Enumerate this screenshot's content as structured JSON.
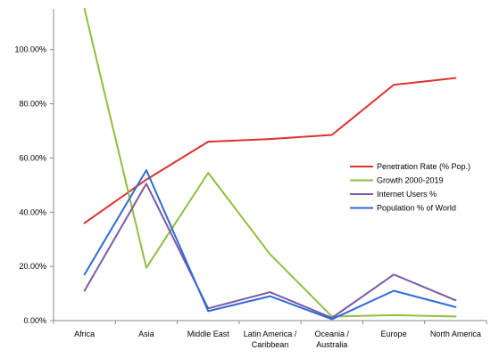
{
  "chart_data": {
    "type": "line",
    "categories": [
      "Africa",
      "Asia",
      "Middle East",
      "Latin America / Caribbean",
      "Oceania / Australia",
      "Europe",
      "North America"
    ],
    "category_lines": [
      [
        "Africa"
      ],
      [
        "Asia"
      ],
      [
        "Middle East"
      ],
      [
        "Latin America /",
        "Caribbean"
      ],
      [
        "Oceania /",
        "Australia"
      ],
      [
        "Europe"
      ],
      [
        "North America"
      ]
    ],
    "y_ticks": [
      "0.00%",
      "20.00%",
      "40.00%",
      "60.00%",
      "80.00%",
      "100.00%"
    ],
    "ylim": [
      0,
      1.15
    ],
    "grid": false,
    "legend_position": "right",
    "series": [
      {
        "name": "Penetration Rate (% Pop.)",
        "color": "#e03030",
        "values": [
          0.36,
          0.52,
          0.66,
          0.67,
          0.685,
          0.87,
          0.895
        ]
      },
      {
        "name": "Growth 2000-2019",
        "color": "#8fbf3f",
        "values": [
          1.15,
          0.195,
          0.545,
          0.245,
          0.015,
          0.02,
          0.015
        ]
      },
      {
        "name": "Internet Users %",
        "color": "#7a5aa6",
        "values": [
          0.11,
          0.505,
          0.045,
          0.105,
          0.01,
          0.17,
          0.075
        ]
      },
      {
        "name": "Population % of World",
        "color": "#2f6bd6",
        "values": [
          0.17,
          0.555,
          0.035,
          0.09,
          0.005,
          0.11,
          0.05
        ]
      }
    ]
  }
}
